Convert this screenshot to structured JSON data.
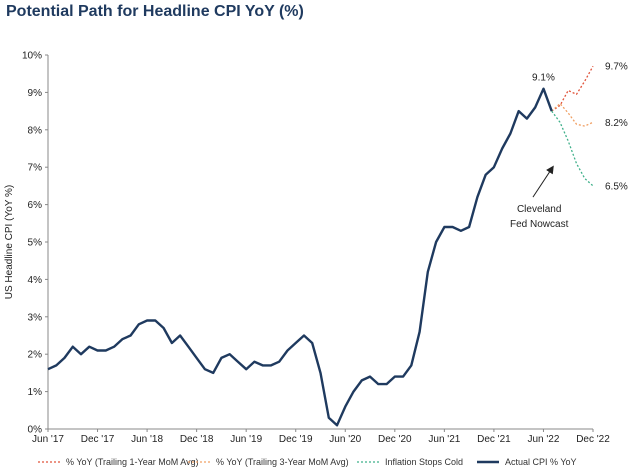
{
  "chart_data": {
    "type": "line",
    "title": "Potential Path for Headline CPI YoY (%)",
    "ylabel": "US Headline CPI (YoY %)",
    "ylim": [
      0,
      10
    ],
    "y_ticks": [
      "0%",
      "1%",
      "2%",
      "3%",
      "4%",
      "5%",
      "6%",
      "7%",
      "8%",
      "9%",
      "10%"
    ],
    "x_ticks": [
      "Jun '17",
      "Dec '17",
      "Jun '18",
      "Dec '18",
      "Jun '19",
      "Dec '19",
      "Jun '20",
      "Dec '20",
      "Jun '21",
      "Dec '21",
      "Jun '22",
      "Dec '22"
    ],
    "x_start": "2017-06",
    "x_end": "2022-12",
    "grid": false,
    "legend_position": "bottom",
    "series": [
      {
        "name": "% YoY (Trailing 1-Year MoM Avg)",
        "color": "#e0533a",
        "style": "dashed",
        "x": [
          "2022-07",
          "2022-08",
          "2022-09",
          "2022-10",
          "2022-11",
          "2022-12"
        ],
        "values": [
          8.5,
          8.65,
          9.05,
          8.95,
          9.3,
          9.7
        ]
      },
      {
        "name": "% YoY (Trailing 3-Year MoM Avg)",
        "color": "#f0a064",
        "style": "dashed",
        "x": [
          "2022-07",
          "2022-08",
          "2022-09",
          "2022-10",
          "2022-11",
          "2022-12"
        ],
        "values": [
          8.5,
          8.7,
          8.45,
          8.15,
          8.1,
          8.2
        ]
      },
      {
        "name": "Inflation Stops Cold",
        "color": "#3fb08a",
        "style": "dashed",
        "x": [
          "2022-07",
          "2022-08",
          "2022-09",
          "2022-10",
          "2022-11",
          "2022-12"
        ],
        "values": [
          8.5,
          8.2,
          7.7,
          7.1,
          6.7,
          6.5
        ]
      },
      {
        "name": "Actual CPI % YoY",
        "color": "#1f3a5f",
        "style": "solid",
        "x": [
          "2017-06",
          "2017-07",
          "2017-08",
          "2017-09",
          "2017-10",
          "2017-11",
          "2017-12",
          "2018-01",
          "2018-02",
          "2018-03",
          "2018-04",
          "2018-05",
          "2018-06",
          "2018-07",
          "2018-08",
          "2018-09",
          "2018-10",
          "2018-11",
          "2018-12",
          "2019-01",
          "2019-02",
          "2019-03",
          "2019-04",
          "2019-05",
          "2019-06",
          "2019-07",
          "2019-08",
          "2019-09",
          "2019-10",
          "2019-11",
          "2019-12",
          "2020-01",
          "2020-02",
          "2020-03",
          "2020-04",
          "2020-05",
          "2020-06",
          "2020-07",
          "2020-08",
          "2020-09",
          "2020-10",
          "2020-11",
          "2020-12",
          "2021-01",
          "2021-02",
          "2021-03",
          "2021-04",
          "2021-05",
          "2021-06",
          "2021-07",
          "2021-08",
          "2021-09",
          "2021-10",
          "2021-11",
          "2021-12",
          "2022-01",
          "2022-02",
          "2022-03",
          "2022-04",
          "2022-05",
          "2022-06",
          "2022-07"
        ],
        "values": [
          1.6,
          1.7,
          1.9,
          2.2,
          2.0,
          2.2,
          2.1,
          2.1,
          2.2,
          2.4,
          2.5,
          2.8,
          2.9,
          2.9,
          2.7,
          2.3,
          2.5,
          2.2,
          1.9,
          1.6,
          1.5,
          1.9,
          2.0,
          1.8,
          1.6,
          1.8,
          1.7,
          1.7,
          1.8,
          2.1,
          2.3,
          2.5,
          2.3,
          1.5,
          0.3,
          0.1,
          0.6,
          1.0,
          1.3,
          1.4,
          1.2,
          1.2,
          1.4,
          1.4,
          1.7,
          2.6,
          4.2,
          5.0,
          5.4,
          5.4,
          5.3,
          5.4,
          6.2,
          6.8,
          7.0,
          7.5,
          7.9,
          8.5,
          8.3,
          8.6,
          9.1,
          8.5
        ]
      }
    ],
    "annotations": [
      {
        "text": "9.1%",
        "x": "2022-06",
        "y": 9.1
      },
      {
        "text": "9.7%",
        "x": "2022-12",
        "y": 9.7
      },
      {
        "text": "8.2%",
        "x": "2022-12",
        "y": 8.2
      },
      {
        "text": "6.5%",
        "x": "2022-12",
        "y": 6.5
      },
      {
        "text": "Cleveland",
        "x": "2022-05",
        "y": 5.8
      },
      {
        "text": "Fed Nowcast",
        "x": "2022-05",
        "y": 5.4
      }
    ]
  }
}
